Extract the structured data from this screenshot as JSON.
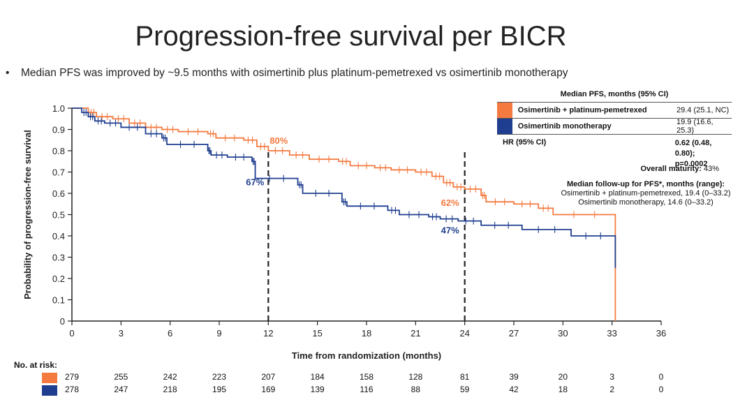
{
  "title": "Progression-free survival per BICR",
  "bullet": {
    "marker": "•",
    "text": "Median PFS was improved by ~9.5 months with osimertinib plus platinum-pemetrexed vs osimertinib monotherapy"
  },
  "colors": {
    "combo": "#F47A40",
    "mono": "#1F3E8F",
    "axis": "#222222"
  },
  "legend": {
    "header": "Median PFS, months (95% CI)",
    "rows": [
      {
        "name": "Osimertinib + platinum-pemetrexed",
        "value": "29.4 (25.1, NC)"
      },
      {
        "name": "Osimertinib monotherapy",
        "value": "19.9 (16.6, 25.3)"
      }
    ],
    "hr_label": "HR (95% CI)",
    "hr_value_line1": "0.62 (0.48, 0.80);",
    "hr_value_line2": "p=0.0002"
  },
  "maturity": {
    "label": "Overall maturity:",
    "value": "43%"
  },
  "followup": {
    "header": "Median follow-up for PFS*, months (range):",
    "line1": "Osimertinib + platinum-pemetrexed, 19.4 (0–33.2)",
    "line2": "Osimertinib monotherapy, 14.6 (0–33.2)"
  },
  "chart_data": {
    "type": "line",
    "title": "",
    "xlabel": "Time from randomization (months)",
    "ylabel": "Probability of progression-free survival",
    "xlim": [
      0,
      36
    ],
    "ylim": [
      0,
      1.0
    ],
    "xticks": [
      0,
      3,
      6,
      9,
      12,
      15,
      18,
      21,
      24,
      27,
      30,
      33,
      36
    ],
    "yticks": [
      "0",
      "0.1",
      "0.2",
      "0.3",
      "0.4",
      "0.5",
      "0.6",
      "0.7",
      "0.8",
      "0.9",
      "1.0"
    ],
    "reference_lines_x": [
      12,
      24
    ],
    "series": [
      {
        "name": "Osimertinib + platinum-pemetrexed",
        "color": "#F47A40",
        "x": [
          0,
          1.0,
          1.5,
          2.5,
          3.5,
          4.5,
          5.5,
          6.5,
          8.3,
          8.8,
          10.5,
          11.3,
          12.0,
          13.3,
          14.5,
          16.3,
          17.0,
          18.5,
          19.5,
          21.0,
          22.0,
          22.7,
          23.3,
          24.0,
          25.0,
          25.3,
          27.0,
          28.5,
          29.4,
          33.2
        ],
        "y": [
          1.0,
          0.98,
          0.96,
          0.95,
          0.93,
          0.91,
          0.9,
          0.89,
          0.88,
          0.86,
          0.85,
          0.82,
          0.8,
          0.78,
          0.76,
          0.75,
          0.73,
          0.72,
          0.71,
          0.7,
          0.68,
          0.65,
          0.63,
          0.62,
          0.59,
          0.56,
          0.55,
          0.53,
          0.5,
          0.0
        ],
        "annotations": [
          {
            "x": 12,
            "label": "80%"
          },
          {
            "x": 24,
            "label": "62%"
          }
        ]
      },
      {
        "name": "Osimertinib monotherapy",
        "color": "#1F3E8F",
        "x": [
          0,
          0.6,
          1.0,
          1.4,
          2.0,
          3.0,
          4.5,
          5.5,
          5.8,
          8.3,
          8.5,
          9.5,
          11.0,
          11.2,
          13.8,
          14.1,
          16.5,
          16.8,
          19.3,
          20.0,
          21.8,
          22.5,
          23.6,
          25.0,
          27.5,
          30.5,
          33.2
        ],
        "y": [
          1.0,
          0.98,
          0.96,
          0.94,
          0.93,
          0.91,
          0.88,
          0.86,
          0.83,
          0.8,
          0.78,
          0.77,
          0.75,
          0.67,
          0.64,
          0.6,
          0.56,
          0.54,
          0.52,
          0.5,
          0.49,
          0.48,
          0.47,
          0.45,
          0.43,
          0.4,
          0.25
        ],
        "annotations": [
          {
            "x": 12,
            "label": "67%"
          },
          {
            "x": 24,
            "label": "47%"
          }
        ]
      }
    ],
    "risk_table": {
      "label": "No. at risk:",
      "times": [
        0,
        3,
        6,
        9,
        12,
        15,
        18,
        21,
        24,
        27,
        30,
        33,
        36
      ],
      "rows": [
        {
          "series": "Osimertinib + platinum-pemetrexed",
          "values": [
            279,
            255,
            242,
            223,
            207,
            184,
            158,
            128,
            81,
            39,
            20,
            3,
            0
          ]
        },
        {
          "series": "Osimertinib monotherapy",
          "values": [
            278,
            247,
            218,
            195,
            169,
            139,
            116,
            88,
            59,
            42,
            18,
            2,
            0
          ]
        }
      ]
    }
  }
}
